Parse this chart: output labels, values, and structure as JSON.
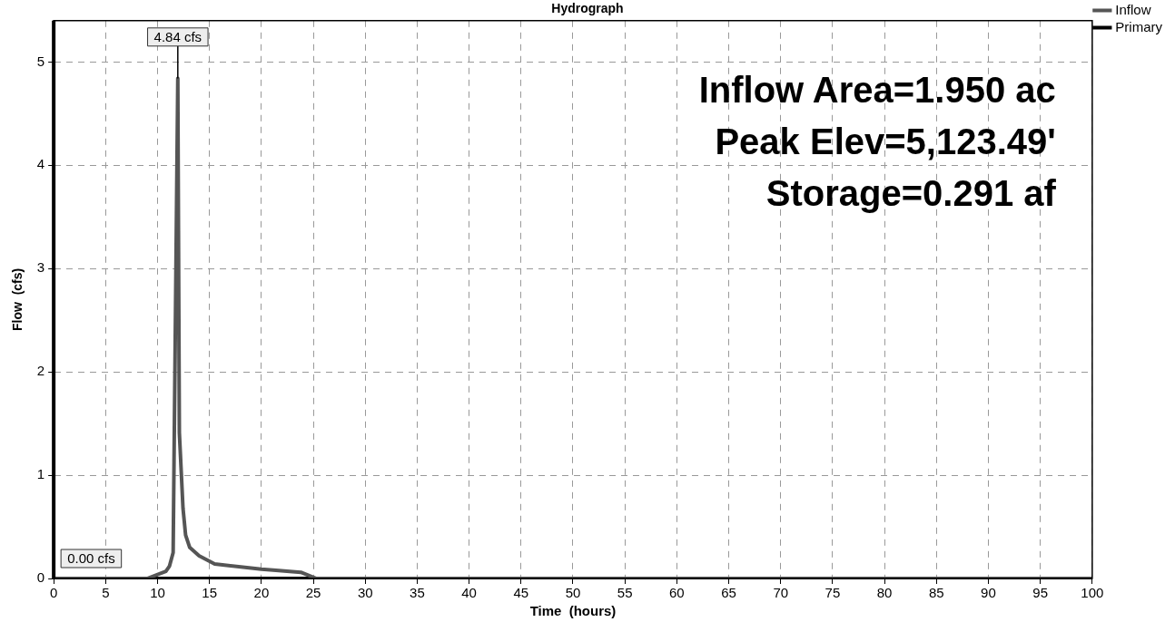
{
  "chart_data": {
    "type": "line",
    "title": "Hydrograph",
    "xlabel": "Time  (hours)",
    "ylabel": "Flow  (cfs)",
    "series": [
      {
        "name": "Inflow",
        "color": "#555555",
        "x": [
          0,
          9,
          10.8,
          11.15,
          11.5,
          11.95,
          12.1,
          12.45,
          12.7,
          13.1,
          14,
          15.5,
          20,
          21.4,
          23.8,
          25.3,
          100
        ],
        "values": [
          0,
          0,
          0.07,
          0.12,
          0.25,
          4.84,
          1.41,
          0.68,
          0.42,
          0.3,
          0.22,
          0.14,
          0.09,
          0.08,
          0.06,
          0,
          0
        ]
      },
      {
        "name": "Primary",
        "color": "#000000",
        "x": [
          0,
          100
        ],
        "values": [
          0,
          0
        ]
      }
    ],
    "xlim": [
      0,
      100
    ],
    "xticks": [
      0,
      5,
      10,
      15,
      20,
      25,
      30,
      35,
      40,
      45,
      50,
      55,
      60,
      65,
      70,
      75,
      80,
      85,
      90,
      95,
      100
    ],
    "ylim": [
      0,
      5.4
    ],
    "yticks": [
      0,
      1,
      2,
      3,
      4,
      5
    ],
    "grid": true,
    "legend": "top right",
    "marker": "none",
    "line_style": "solid",
    "annotations": [
      {
        "text": "4.84 cfs",
        "x": 11.95,
        "y": 4.84
      },
      {
        "text": "0.00 cfs",
        "x": 0,
        "y": 0
      },
      "Inflow Area=1.950 ac",
      "Peak Elev=5,123.49'",
      "Storage=0.291 af"
    ]
  }
}
